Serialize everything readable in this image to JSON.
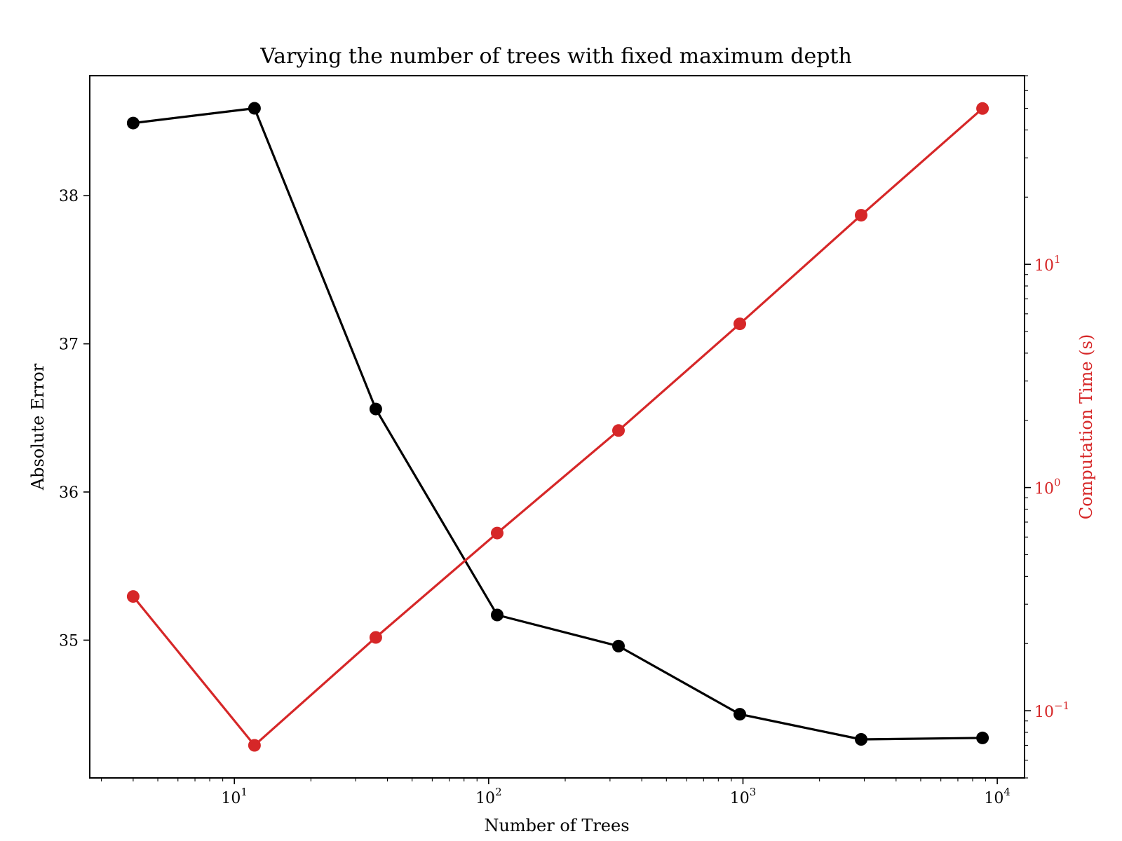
{
  "chart_data": {
    "type": "line",
    "title": "Varying the number of trees with fixed maximum depth",
    "xlabel": "Number of Trees",
    "ylabel": "Absolute Error",
    "y2label": "Computation Time (s)",
    "xscale": "log",
    "xlim": [
      2.7,
      12800
    ],
    "ylim": [
      34.07,
      38.81
    ],
    "y2scale": "log",
    "y2lim": [
      0.05,
      70
    ],
    "x_ticks": [
      {
        "base": "10",
        "exp": "1",
        "value": 10
      },
      {
        "base": "10",
        "exp": "2",
        "value": 100
      },
      {
        "base": "10",
        "exp": "3",
        "value": 1000
      },
      {
        "base": "10",
        "exp": "4",
        "value": 10000
      }
    ],
    "y_ticks": [
      "35",
      "36",
      "37",
      "38"
    ],
    "y2_ticks": [
      {
        "base": "10",
        "exp": "−1",
        "value": 0.1
      },
      {
        "base": "10",
        "exp": "0",
        "value": 1
      },
      {
        "base": "10",
        "exp": "1",
        "value": 10
      }
    ],
    "x": [
      4,
      12,
      36,
      108,
      324,
      972,
      2916,
      8748
    ],
    "series": [
      {
        "axis": "left",
        "color": "#000000",
        "values": [
          38.49,
          38.59,
          36.56,
          35.17,
          34.96,
          34.5,
          34.33,
          34.34
        ]
      },
      {
        "axis": "right",
        "color": "#d62728",
        "values": [
          0.325,
          0.07,
          0.213,
          0.625,
          1.8,
          5.41,
          16.6,
          49.9
        ]
      }
    ],
    "grid": false,
    "right_axis_color": "#d62728"
  }
}
